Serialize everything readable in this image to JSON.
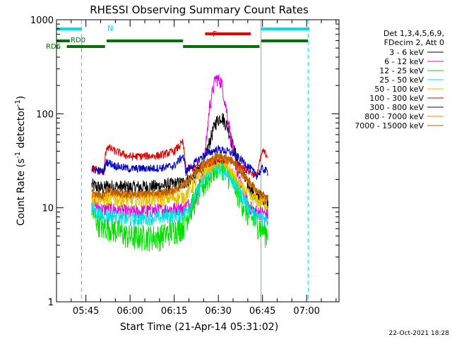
{
  "chart_data": {
    "type": "line",
    "title": "RHESSI Observing Summary Count Rates",
    "xlabel": "Start Time (21-Apr-14 05:31:02)",
    "ylabel_main": "Count Rate (s",
    "ylabel_sup1": "-1",
    "ylabel_mid": " detector",
    "ylabel_sup2": "-1",
    "ylabel_end": ")",
    "yscale": "log",
    "xlim_min": [
      35,
      131
    ],
    "ylim": [
      1,
      1000
    ],
    "x_ticks": [
      {
        "value": 45,
        "label": "05:45"
      },
      {
        "value": 60,
        "label": "06:00"
      },
      {
        "value": 75,
        "label": "06:15"
      },
      {
        "value": 90,
        "label": "06:30"
      },
      {
        "value": 105,
        "label": "06:45"
      },
      {
        "value": 120,
        "label": "07:00"
      }
    ],
    "y_ticks": [
      {
        "value": 1,
        "label": "1"
      },
      {
        "value": 10,
        "label": "10"
      },
      {
        "value": 100,
        "label": "100"
      },
      {
        "value": 1000,
        "label": "1000"
      }
    ],
    "legend_header": [
      "Det 1,3,4,5,6,9,",
      "FDecim 2, Att 0"
    ],
    "timestamp": "22-Oct-2021 18:28",
    "annotations": {
      "rd0": "RD0",
      "rd6": "RD6",
      "n": "N",
      "f": "F"
    },
    "night_boundaries_min": [
      35,
      104.5
    ],
    "saa_boundaries_min": [
      43.5,
      120.5
    ],
    "bars": {
      "n": [
        {
          "x0": 35,
          "x1": 43.5
        },
        {
          "x0": 104.5,
          "x1": 121
        }
      ],
      "rd0": [
        {
          "x0": 35,
          "x1": 39.5
        },
        {
          "x0": 52,
          "x1": 78
        },
        {
          "x0": 104.5,
          "x1": 120.5
        }
      ],
      "rd6": [
        {
          "x0": 38.5,
          "x1": 51.5
        },
        {
          "x0": 78,
          "x1": 104
        }
      ],
      "f": [
        {
          "x0": 85.5,
          "x1": 101
        }
      ]
    },
    "series": [
      {
        "name": "3 - 6 keV",
        "color": "#000000",
        "base": [
          [
            47,
            17.5
          ],
          [
            51,
            16
          ],
          [
            52,
            17
          ],
          [
            60,
            16.5
          ],
          [
            70,
            17
          ],
          [
            78,
            18.5
          ],
          [
            82,
            22
          ],
          [
            85,
            30
          ],
          [
            87,
            50
          ],
          [
            89,
            80
          ],
          [
            91,
            95
          ],
          [
            93,
            75
          ],
          [
            95,
            45
          ],
          [
            97,
            28
          ],
          [
            99,
            20
          ],
          [
            101,
            16
          ],
          [
            103,
            13
          ],
          [
            105,
            13
          ],
          [
            106,
            12.5
          ],
          [
            107,
            12
          ]
        ]
      },
      {
        "name": "6 - 12 keV",
        "color": "#e000e0",
        "base": [
          [
            47,
            11
          ],
          [
            51,
            9.5
          ],
          [
            52,
            10
          ],
          [
            60,
            9
          ],
          [
            70,
            9.5
          ],
          [
            78,
            10
          ],
          [
            82,
            12
          ],
          [
            85,
            25
          ],
          [
            87,
            120
          ],
          [
            89,
            240
          ],
          [
            91,
            220
          ],
          [
            93,
            100
          ],
          [
            95,
            40
          ],
          [
            97,
            20
          ],
          [
            99,
            13
          ],
          [
            101,
            10
          ],
          [
            103,
            9
          ],
          [
            105,
            9
          ],
          [
            106,
            8.5
          ],
          [
            107,
            8.5
          ]
        ]
      },
      {
        "name": "12 - 25 keV",
        "color": "#00e000",
        "base": [
          [
            47,
            9
          ],
          [
            51,
            6
          ],
          [
            52,
            6.5
          ],
          [
            60,
            5
          ],
          [
            70,
            5
          ],
          [
            78,
            6.5
          ],
          [
            80,
            9
          ],
          [
            83,
            14
          ],
          [
            87,
            22
          ],
          [
            89,
            28
          ],
          [
            91,
            30
          ],
          [
            93,
            24
          ],
          [
            95,
            19
          ],
          [
            97,
            14
          ],
          [
            99,
            10
          ],
          [
            101,
            8
          ],
          [
            103,
            7
          ],
          [
            105,
            6
          ],
          [
            106,
            5.5
          ],
          [
            107,
            5.5
          ]
        ]
      },
      {
        "name": "25 - 50 keV",
        "color": "#00e0e0",
        "base": [
          [
            47,
            10
          ],
          [
            51,
            8
          ],
          [
            52,
            8.5
          ],
          [
            60,
            7.5
          ],
          [
            70,
            8
          ],
          [
            78,
            8.5
          ],
          [
            80,
            10
          ],
          [
            83,
            15
          ],
          [
            86,
            22
          ],
          [
            89,
            27
          ],
          [
            91,
            26
          ],
          [
            93,
            23
          ],
          [
            95,
            19
          ],
          [
            97,
            15
          ],
          [
            99,
            12
          ],
          [
            101,
            9.5
          ],
          [
            103,
            8
          ],
          [
            105,
            8
          ],
          [
            106,
            7.5
          ],
          [
            107,
            7.5
          ]
        ]
      },
      {
        "name": "50 - 100 keV",
        "color": "#e0c000",
        "base": [
          [
            47,
            13
          ],
          [
            51,
            12
          ],
          [
            52,
            12.5
          ],
          [
            60,
            12
          ],
          [
            70,
            12.5
          ],
          [
            78,
            13
          ],
          [
            80,
            15
          ],
          [
            83,
            20
          ],
          [
            86,
            26
          ],
          [
            89,
            30
          ],
          [
            91,
            31
          ],
          [
            93,
            28
          ],
          [
            95,
            23
          ],
          [
            97,
            18
          ],
          [
            99,
            15
          ],
          [
            101,
            13
          ],
          [
            103,
            12
          ],
          [
            105,
            11.5
          ],
          [
            106,
            11
          ],
          [
            107,
            11
          ]
        ]
      },
      {
        "name": "100 - 300 keV",
        "color": "#e00000",
        "base": [
          [
            47,
            26
          ],
          [
            51,
            24
          ],
          [
            52,
            45
          ],
          [
            55,
            40
          ],
          [
            60,
            35
          ],
          [
            70,
            36
          ],
          [
            75,
            40
          ],
          [
            78,
            50
          ],
          [
            79,
            26
          ],
          [
            82,
            27
          ],
          [
            85,
            29
          ],
          [
            88,
            31
          ],
          [
            90,
            33
          ],
          [
            93,
            32
          ],
          [
            95,
            30
          ],
          [
            97,
            28
          ],
          [
            99,
            26
          ],
          [
            101,
            24
          ],
          [
            103,
            22
          ],
          [
            105,
            40
          ],
          [
            106,
            38
          ],
          [
            107,
            36
          ]
        ]
      },
      {
        "name": "300 - 800 keV",
        "color": "#0000c0",
        "base": [
          [
            47,
            26
          ],
          [
            51,
            24
          ],
          [
            52,
            31
          ],
          [
            55,
            28
          ],
          [
            60,
            26
          ],
          [
            70,
            26.5
          ],
          [
            75,
            28
          ],
          [
            78,
            36
          ],
          [
            79,
            24
          ],
          [
            82,
            30
          ],
          [
            85,
            36
          ],
          [
            88,
            40
          ],
          [
            90,
            42
          ],
          [
            93,
            40
          ],
          [
            95,
            38
          ],
          [
            97,
            34
          ],
          [
            99,
            30
          ],
          [
            101,
            26
          ],
          [
            103,
            22
          ],
          [
            105,
            26
          ],
          [
            106,
            25
          ],
          [
            107,
            24
          ]
        ]
      },
      {
        "name": "800 - 7000 keV",
        "color": "#ff8000",
        "base": [
          [
            47,
            14
          ],
          [
            51,
            13
          ],
          [
            52,
            15
          ],
          [
            55,
            14
          ],
          [
            60,
            13.5
          ],
          [
            70,
            14
          ],
          [
            75,
            15
          ],
          [
            78,
            17
          ],
          [
            80,
            20
          ],
          [
            83,
            25
          ],
          [
            86,
            30
          ],
          [
            89,
            34
          ],
          [
            91,
            35
          ],
          [
            93,
            34
          ],
          [
            95,
            31
          ],
          [
            97,
            26
          ],
          [
            99,
            21
          ],
          [
            101,
            18
          ],
          [
            103,
            15
          ],
          [
            105,
            13
          ],
          [
            106,
            12.5
          ],
          [
            107,
            12
          ]
        ]
      },
      {
        "name": "7000 - 15000 keV",
        "color": "#b06000",
        "base": [
          [
            47,
            14.5
          ],
          [
            51,
            13.5
          ],
          [
            52,
            15.5
          ],
          [
            55,
            14.5
          ],
          [
            60,
            14
          ],
          [
            70,
            14.5
          ],
          [
            75,
            15.5
          ],
          [
            78,
            17.5
          ],
          [
            80,
            20.5
          ],
          [
            83,
            25.5
          ],
          [
            86,
            30.5
          ],
          [
            89,
            34.5
          ],
          [
            91,
            35.5
          ],
          [
            93,
            34.5
          ],
          [
            95,
            31.5
          ],
          [
            97,
            26.5
          ],
          [
            99,
            21.5
          ],
          [
            101,
            18.5
          ],
          [
            103,
            15.5
          ],
          [
            105,
            13.5
          ],
          [
            106,
            13
          ],
          [
            107,
            12.5
          ]
        ]
      }
    ]
  }
}
